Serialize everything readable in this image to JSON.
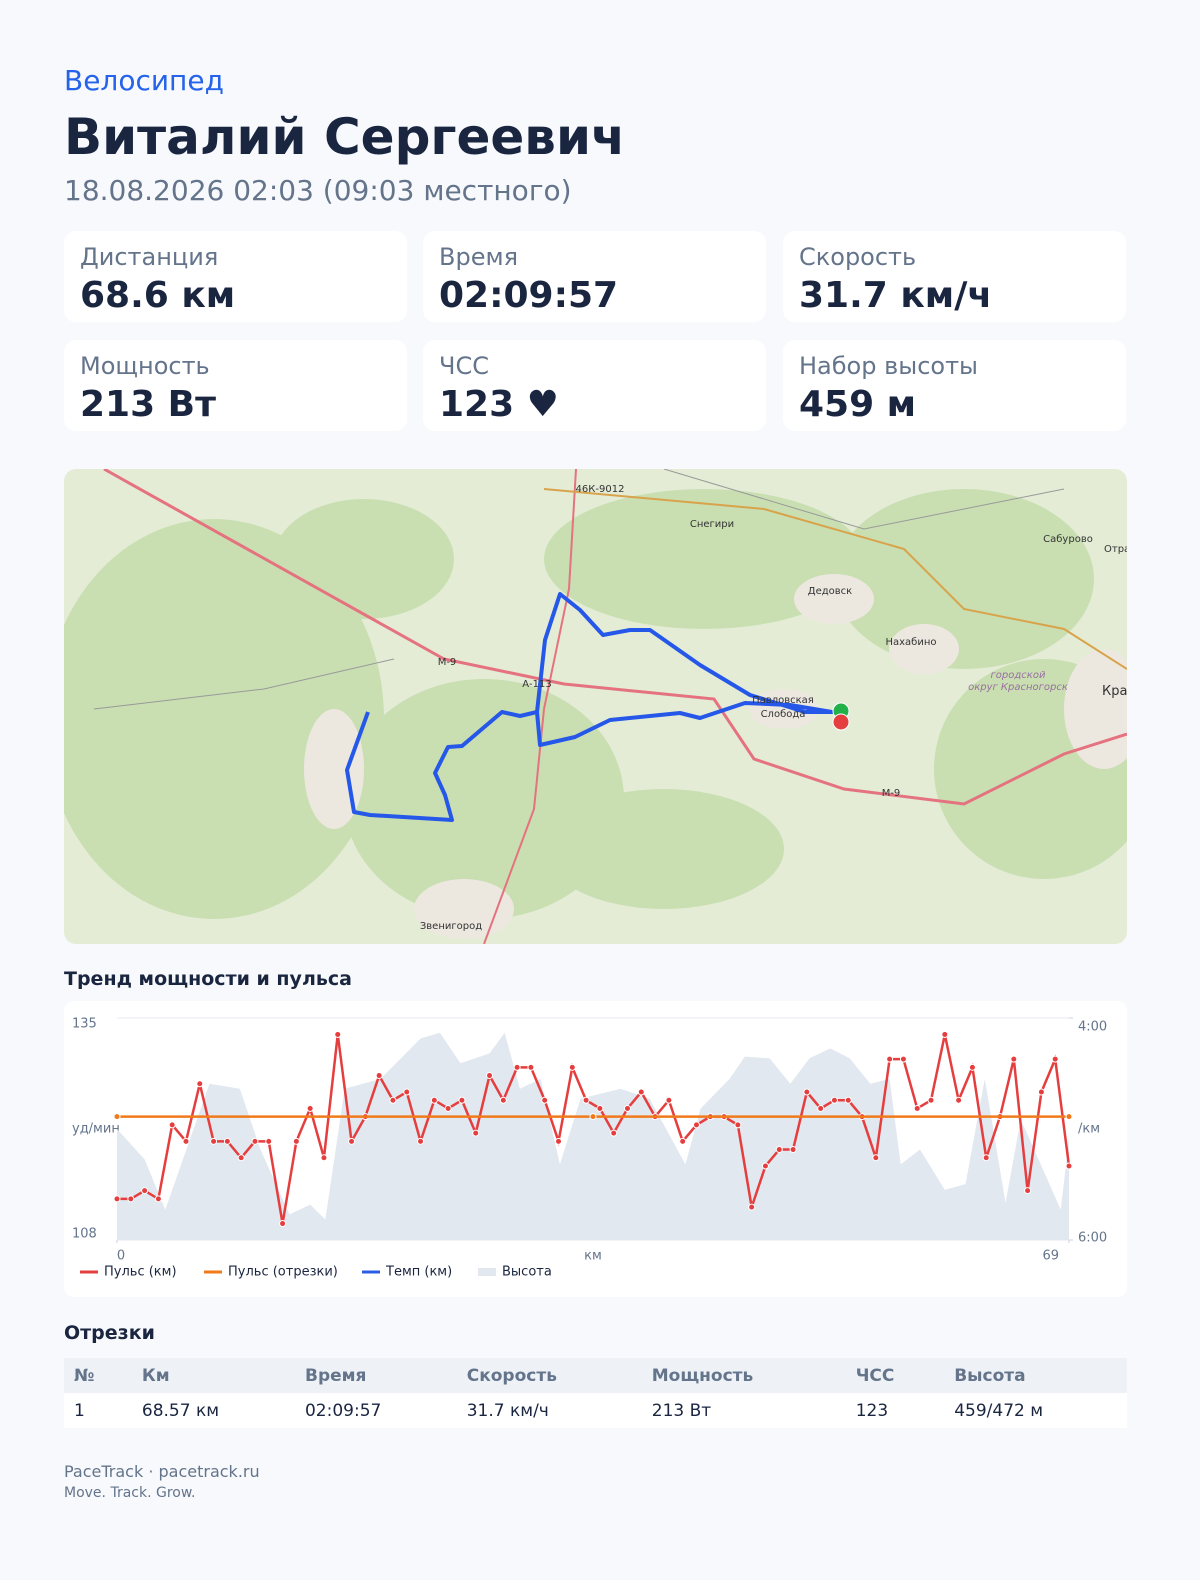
{
  "header": {
    "sport": "Велосипед",
    "name": "Виталий Сергеевич",
    "date": "18.08.2026 02:03 (09:03 местного)"
  },
  "stats": [
    {
      "label": "Дистанция",
      "value": "68.6 км"
    },
    {
      "label": "Время",
      "value": "02:09:57"
    },
    {
      "label": "Скорость",
      "value": "31.7 км/ч"
    },
    {
      "label": "Мощность",
      "value": "213 Вт"
    },
    {
      "label": "ЧСС",
      "value": "123 ♥"
    },
    {
      "label": "Набор высоты",
      "value": "459 м"
    }
  ],
  "map": {
    "labels": [
      "46К-9012",
      "Снегири",
      "Сабурово",
      "Отрадно",
      "Дедовск",
      "Нахабино",
      "городской",
      "округ Красногорск",
      "Красног",
      "Павловская",
      "Слобода",
      "М-9",
      "А-113",
      "М-9",
      "Звенигород"
    ]
  },
  "chart_data": {
    "type": "line",
    "title": "Тренд мощности и пульса",
    "x_label": "км",
    "y_label": "уд/мин",
    "y2_label": "/км",
    "xlim": [
      0,
      69
    ],
    "xticks": [
      0,
      69
    ],
    "ylim": [
      108,
      135
    ],
    "yticks": [
      108,
      135
    ],
    "y2lim": [
      360,
      240
    ],
    "y2ticks": [
      {
        "value": 240,
        "label": "4:00"
      },
      {
        "value": 360,
        "label": "6:00"
      }
    ],
    "grid": true,
    "series": [
      {
        "name": "Пульс (км)",
        "color": "#e53e3e",
        "x": [
          0,
          1,
          2,
          3,
          4,
          5,
          6,
          7,
          8,
          9,
          10,
          11,
          12,
          13,
          14,
          15,
          16,
          17,
          18,
          19,
          20,
          21,
          22,
          23,
          24,
          25,
          26,
          27,
          28,
          29,
          30,
          31,
          32,
          33,
          34,
          35,
          36,
          37,
          38,
          39,
          40,
          41,
          42,
          43,
          44,
          45,
          46,
          47,
          48,
          49,
          50,
          51,
          52,
          53,
          54,
          55,
          56,
          57,
          58,
          59,
          60,
          61,
          62,
          63,
          64,
          65,
          66,
          67,
          68,
          69
        ],
        "values": [
          113,
          113,
          114,
          113,
          122,
          120,
          127,
          120,
          120,
          118,
          120,
          120,
          110,
          120,
          124,
          118,
          133,
          120,
          123,
          128,
          125,
          126,
          120,
          125,
          124,
          125,
          121,
          128,
          125,
          129,
          129,
          125,
          120,
          129,
          125,
          124,
          121,
          124,
          126,
          123,
          125,
          120,
          122,
          123,
          123,
          122,
          112,
          117,
          119,
          119,
          126,
          124,
          125,
          125,
          123,
          118,
          130,
          130,
          124,
          125,
          133,
          125,
          129,
          118,
          123,
          130,
          114,
          126,
          130,
          117
        ]
      },
      {
        "name": "Пульс (отрезки)",
        "color": "#f07a1a",
        "x": [
          0,
          34.5,
          69
        ],
        "values": [
          123,
          123,
          123
        ]
      },
      {
        "name": "Темп (км)",
        "color": "#2b5ce6",
        "axis": "y2",
        "values": []
      },
      {
        "name": "Высота",
        "color": "#e2e8f0",
        "kind": "area",
        "x": [
          0,
          2,
          3.5,
          6.7,
          8.9,
          10.4,
          12.5,
          14,
          15.1,
          16.5,
          19.1,
          22,
          23.4,
          24.9,
          27,
          28.1,
          29.2,
          30.7,
          32.1,
          33.6,
          36.5,
          38.6,
          41.2,
          42.3,
          44.4,
          45.5,
          47.3,
          48.8,
          50.2,
          51.7,
          53.1,
          54.6,
          56,
          56.8,
          58.2,
          60,
          61.5,
          62.9,
          64.4,
          65.5,
          68.4,
          69
        ],
        "values": [
          121.5,
          117.8,
          111.7,
          127,
          126.4,
          119,
          111.1,
          112.3,
          110.5,
          126.4,
          127.6,
          132.5,
          133.2,
          129.5,
          130.7,
          133.2,
          126.4,
          127.6,
          117.2,
          125.2,
          126.4,
          125.2,
          117.2,
          124,
          127.6,
          130.3,
          130.1,
          127,
          130.1,
          131.3,
          130.1,
          127,
          127.6,
          117.2,
          119,
          114.1,
          114.8,
          127.6,
          112.5,
          122.7,
          111.7,
          120.3
        ]
      }
    ]
  },
  "table": {
    "title": "Отрезки",
    "headers": [
      "№",
      "Км",
      "Время",
      "Скорость",
      "Мощность",
      "ЧСС",
      "Высота"
    ],
    "rows": [
      [
        "1",
        "68.57 км",
        "02:09:57",
        "31.7 км/ч",
        "213 Вт",
        "123",
        "459/472 м"
      ]
    ]
  },
  "footer": {
    "brand": "PaceTrack · pacetrack.ru",
    "tagline": "Move. Track. Grow."
  }
}
